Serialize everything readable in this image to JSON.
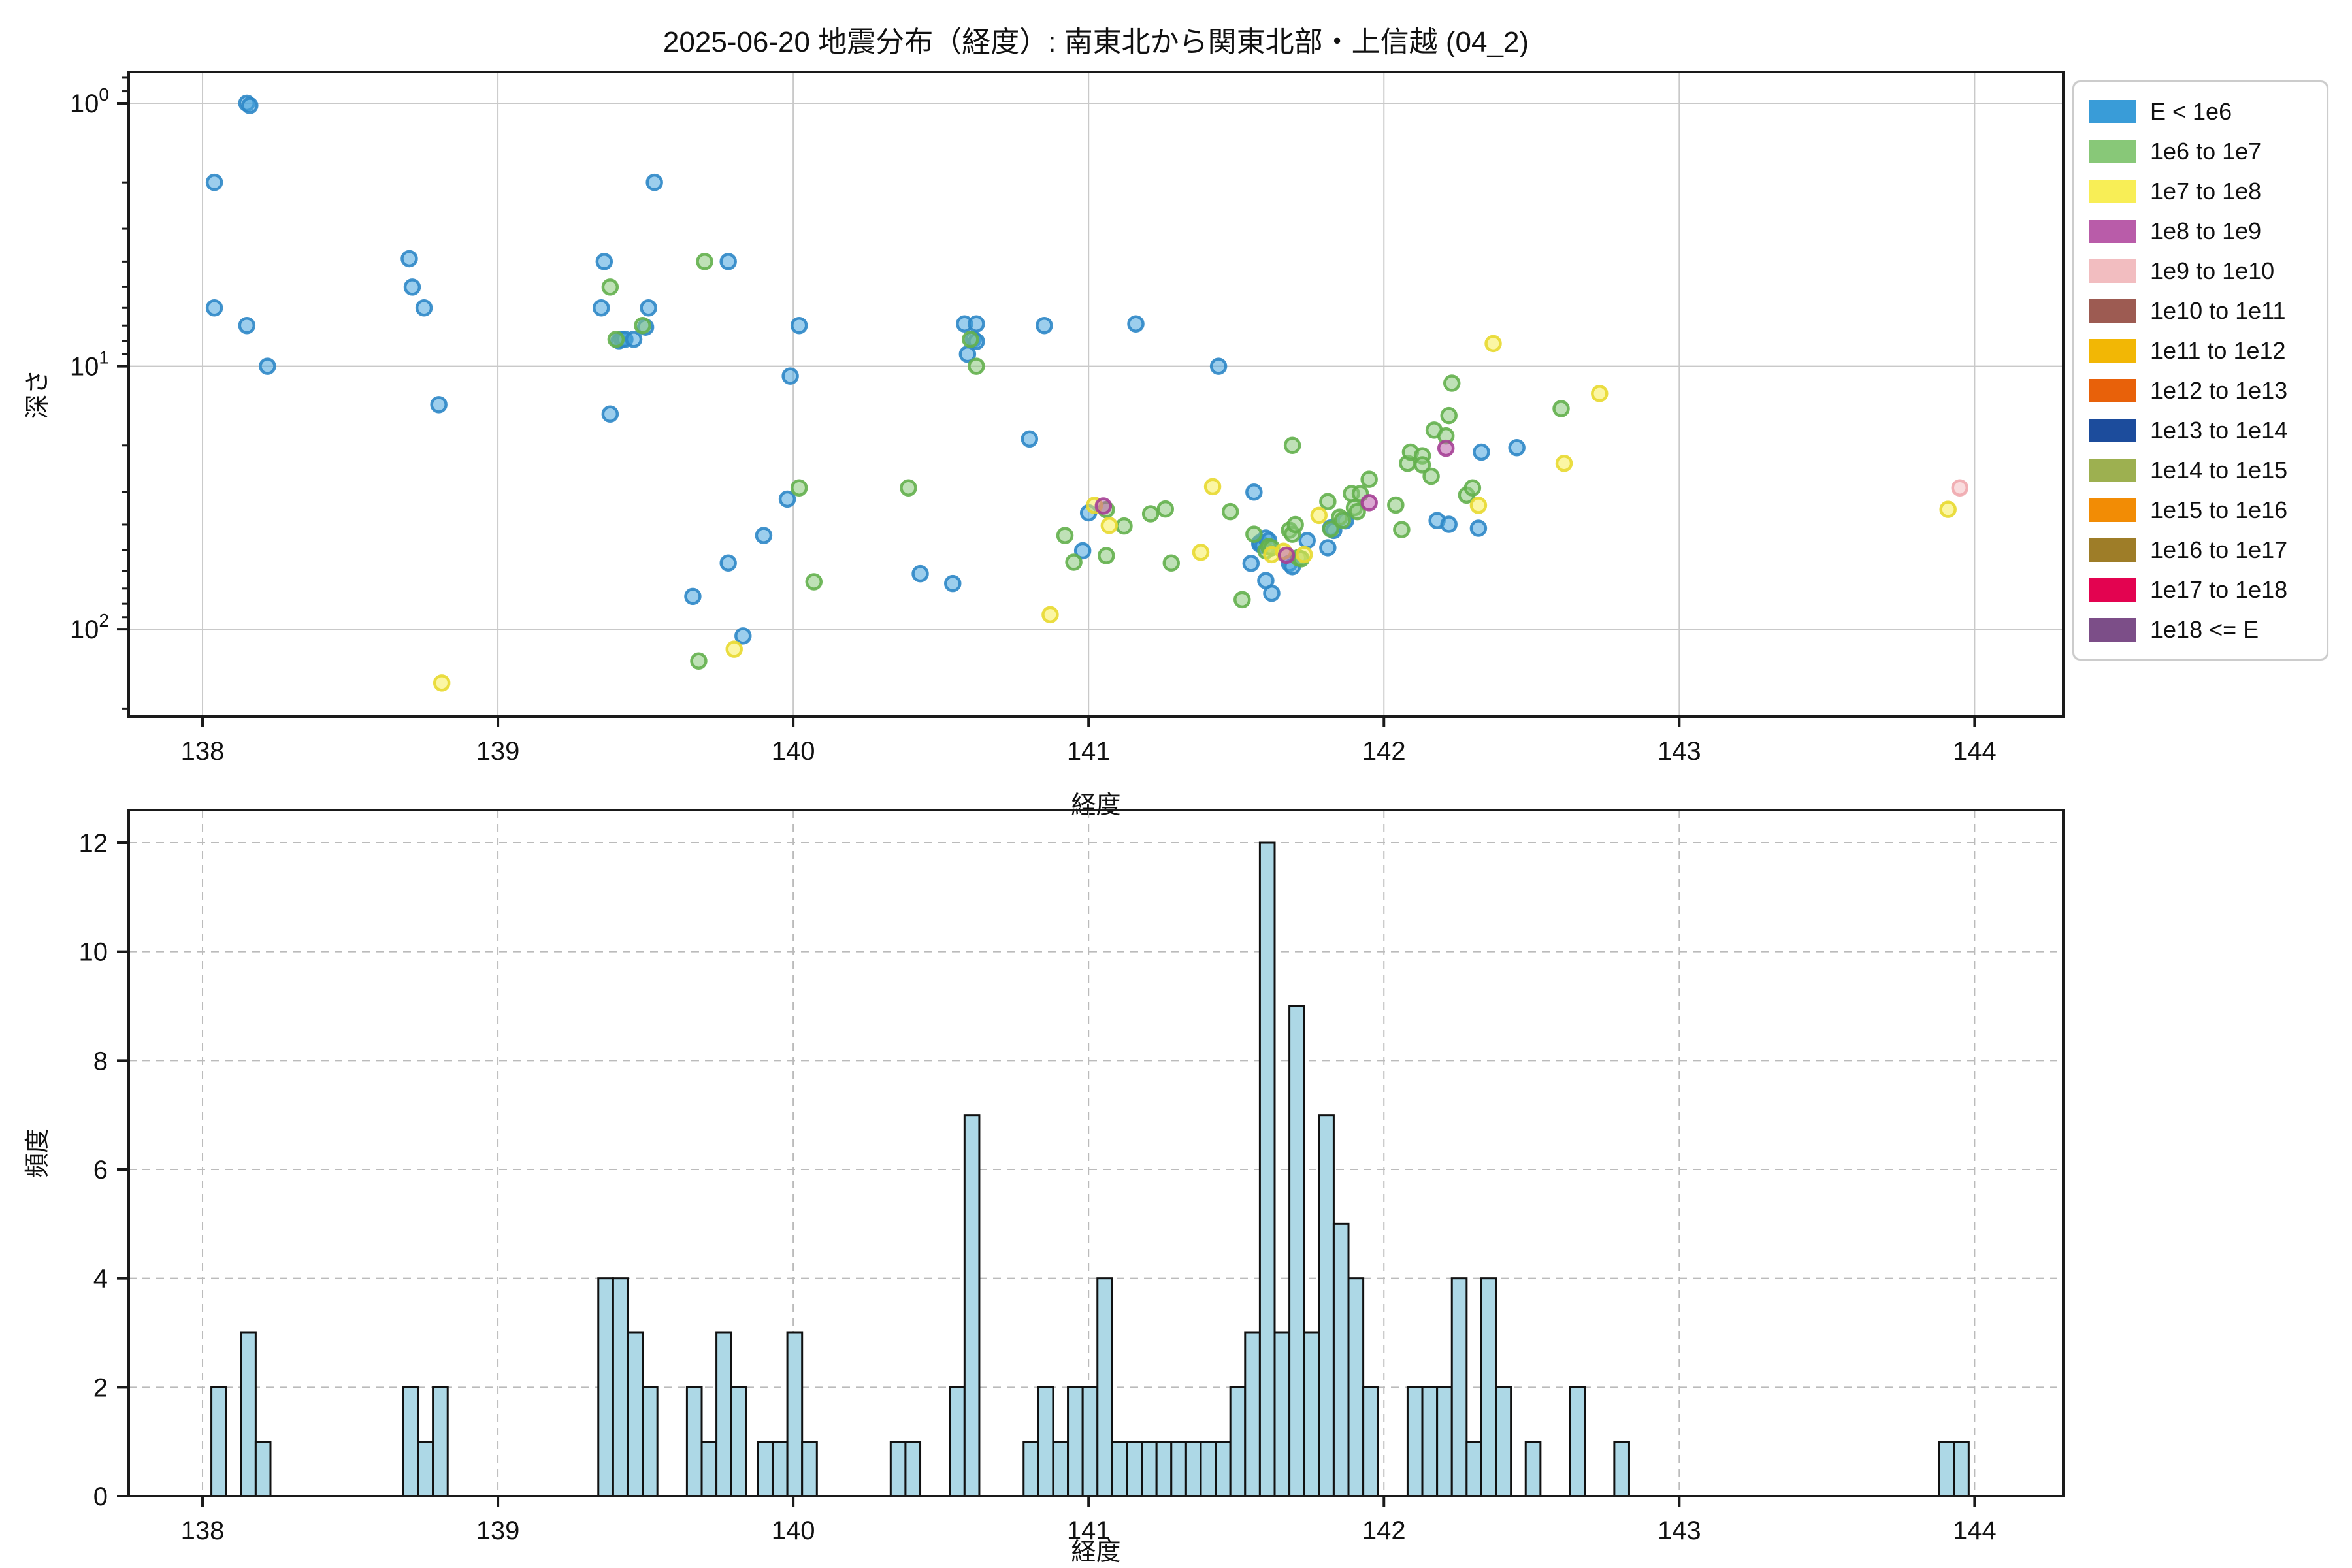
{
  "figure": {
    "title": "2025-06-20 地震分布（経度）: 南東北から関東北部・上信越 (04_2)",
    "background": "#ffffff"
  },
  "legend": {
    "position": "outside upper right",
    "border_color": "#cccccc"
  },
  "histogram_style": {
    "bar_fill": "#ADD8E6",
    "bar_edge": "#111111",
    "grid_color": "#bbbbbb",
    "grid_dashed": true
  },
  "scatter_style": {
    "grid_color": "#c9c9c9",
    "spine_color": "#1a1a1a",
    "dot_radius": 11,
    "dot_fill_opacity": 0.55,
    "dot_stroke_opacity": 0.9
  },
  "chart_data": [
    {
      "type": "scatter",
      "title": "2025-06-20 地震分布（経度）: 南東北から関東北部・上信越 (04_2)",
      "xlabel": "経度",
      "ylabel": "深さ",
      "xlim": [
        137.75,
        144.3
      ],
      "ylim": [
        0.76,
        215
      ],
      "yscale": "log",
      "y_inverted": true,
      "grid": true,
      "x_ticks": [
        138,
        139,
        140,
        141,
        142,
        143,
        144
      ],
      "y_ticks": [
        1,
        10,
        100
      ],
      "legend_position": "upper right outside",
      "series": [
        {
          "name": "E < 1e6",
          "color": "#399CD8",
          "fill": "#4AA5DE",
          "stroke": "#2D87C6",
          "points": [
            [
              138.04,
              2.0
            ],
            [
              138.04,
              6.0
            ],
            [
              138.15,
              1.0
            ],
            [
              138.16,
              1.02
            ],
            [
              138.15,
              7.0
            ],
            [
              138.22,
              10.0
            ],
            [
              138.7,
              3.9
            ],
            [
              138.71,
              5.0
            ],
            [
              138.75,
              6.0
            ],
            [
              138.8,
              14.0
            ],
            [
              139.36,
              4.0
            ],
            [
              139.35,
              6.0
            ],
            [
              139.51,
              6.0
            ],
            [
              139.53,
              2.0
            ],
            [
              139.41,
              8.0
            ],
            [
              139.42,
              7.9
            ],
            [
              139.43,
              7.9
            ],
            [
              139.46,
              7.9
            ],
            [
              139.5,
              7.1
            ],
            [
              139.38,
              15.2
            ],
            [
              139.78,
              4.0
            ],
            [
              139.66,
              75
            ],
            [
              139.78,
              56
            ],
            [
              139.83,
              106
            ],
            [
              139.9,
              44
            ],
            [
              139.98,
              32
            ],
            [
              140.02,
              7.0
            ],
            [
              139.99,
              10.9
            ],
            [
              140.43,
              61.5
            ],
            [
              140.54,
              67
            ],
            [
              140.58,
              6.9
            ],
            [
              140.62,
              6.9
            ],
            [
              140.61,
              7.9
            ],
            [
              140.62,
              8.05
            ],
            [
              140.59,
              9.0
            ],
            [
              140.85,
              7.0
            ],
            [
              140.8,
              18.9
            ],
            [
              140.98,
              50.3
            ],
            [
              141.0,
              36.1
            ],
            [
              141.16,
              6.9
            ],
            [
              141.44,
              10.0
            ],
            [
              141.56,
              30.1
            ],
            [
              141.55,
              56.2
            ],
            [
              141.58,
              46.9
            ],
            [
              141.58,
              47.5
            ],
            [
              141.59,
              48
            ],
            [
              141.6,
              45
            ],
            [
              141.61,
              46
            ],
            [
              141.6,
              65.3
            ],
            [
              141.62,
              73
            ],
            [
              141.68,
              56.2
            ],
            [
              141.69,
              57.8
            ],
            [
              141.74,
              46
            ],
            [
              141.81,
              49
            ],
            [
              141.82,
              41.2
            ],
            [
              141.83,
              42.1
            ],
            [
              141.87,
              38.7
            ],
            [
              142.18,
              38.6
            ],
            [
              142.22,
              39.9
            ],
            [
              142.33,
              21.2
            ],
            [
              142.45,
              20.4
            ],
            [
              142.32,
              41.3
            ]
          ]
        },
        {
          "name": "1e6 to 1e7",
          "color": "#88C878",
          "fill": "#8BC97B",
          "stroke": "#63B04C",
          "points": [
            [
              139.38,
              5.0
            ],
            [
              139.4,
              7.9
            ],
            [
              139.49,
              7.0
            ],
            [
              139.7,
              4.0
            ],
            [
              139.68,
              132
            ],
            [
              140.02,
              29
            ],
            [
              140.07,
              66
            ],
            [
              140.39,
              29
            ],
            [
              140.6,
              7.9
            ],
            [
              140.62,
              10.0
            ],
            [
              140.92,
              44
            ],
            [
              140.95,
              55.6
            ],
            [
              141.06,
              35.1
            ],
            [
              141.12,
              40.5
            ],
            [
              141.06,
              52.5
            ],
            [
              141.21,
              36.4
            ],
            [
              141.26,
              34.9
            ],
            [
              141.28,
              56
            ],
            [
              141.48,
              35.7
            ],
            [
              141.52,
              77.2
            ],
            [
              141.56,
              43.5
            ],
            [
              141.6,
              50.3
            ],
            [
              141.61,
              48.5
            ],
            [
              141.62,
              49
            ],
            [
              141.68,
              42
            ],
            [
              141.69,
              43.5
            ],
            [
              141.7,
              40
            ],
            [
              141.69,
              20
            ],
            [
              141.71,
              53.5
            ],
            [
              141.72,
              54
            ],
            [
              141.81,
              32.7
            ],
            [
              141.82,
              41.6
            ],
            [
              141.85,
              37.5
            ],
            [
              141.86,
              38.5
            ],
            [
              141.89,
              30.5
            ],
            [
              141.92,
              30.5
            ],
            [
              141.9,
              34.5
            ],
            [
              141.91,
              35.7
            ],
            [
              141.95,
              26.9
            ],
            [
              142.04,
              33.7
            ],
            [
              142.06,
              41.8
            ],
            [
              142.08,
              23.4
            ],
            [
              142.09,
              21.2
            ],
            [
              142.13,
              21.9
            ],
            [
              142.13,
              23.7
            ],
            [
              142.16,
              26.2
            ],
            [
              142.17,
              17.5
            ],
            [
              142.21,
              18.4
            ],
            [
              142.22,
              15.4
            ],
            [
              142.23,
              11.6
            ],
            [
              142.28,
              30.9
            ],
            [
              142.3,
              29.0
            ],
            [
              142.6,
              14.5
            ]
          ]
        },
        {
          "name": "1e7 to 1e8",
          "color": "#F8EE56",
          "fill": "#F8EF5A",
          "stroke": "#E8D930",
          "points": [
            [
              138.81,
              160
            ],
            [
              139.8,
              119
            ],
            [
              140.87,
              88
            ],
            [
              141.02,
              33.8
            ],
            [
              141.07,
              40.3
            ],
            [
              141.38,
              51
            ],
            [
              141.42,
              28.7
            ],
            [
              141.62,
              52
            ],
            [
              141.66,
              50.5
            ],
            [
              141.73,
              52
            ],
            [
              141.78,
              36.9
            ],
            [
              142.32,
              33.8
            ],
            [
              142.37,
              8.2
            ],
            [
              142.61,
              23.4
            ],
            [
              142.73,
              12.7
            ],
            [
              143.91,
              35
            ]
          ]
        },
        {
          "name": "1e8 to 1e9",
          "color": "#B95CA9",
          "fill": "#BC60AB",
          "stroke": "#A53F95",
          "points": [
            [
              141.05,
              34.0
            ],
            [
              141.67,
              52.3
            ],
            [
              141.95,
              33.0
            ],
            [
              142.21,
              20.5
            ]
          ]
        },
        {
          "name": "1e9 to 1e10",
          "color": "#F2BDC0",
          "fill": "#F4BFC3",
          "stroke": "#EFA9AE",
          "points": [
            [
              143.95,
              29
            ]
          ]
        },
        {
          "name": "1e10 to 1e11",
          "color": "#9D5B52",
          "fill": "#9D5B52",
          "stroke": "#82463E",
          "points": []
        },
        {
          "name": "1e11 to 1e12",
          "color": "#F2B705",
          "fill": "#F2B705",
          "stroke": "#C99603",
          "points": []
        },
        {
          "name": "1e12 to 1e13",
          "color": "#E8610A",
          "fill": "#E8610A",
          "stroke": "#BC4E07",
          "points": []
        },
        {
          "name": "1e13 to 1e14",
          "color": "#1C4C9C",
          "fill": "#1C4C9C",
          "stroke": "#143A78",
          "points": []
        },
        {
          "name": "1e14 to 1e15",
          "color": "#9DB050",
          "fill": "#9DB050",
          "stroke": "#7E8F3C",
          "points": []
        },
        {
          "name": "1e15 to 1e16",
          "color": "#F28C05",
          "fill": "#F28C05",
          "stroke": "#C67203",
          "points": []
        },
        {
          "name": "1e16 to 1e17",
          "color": "#9E7D28",
          "fill": "#9E7D28",
          "stroke": "#7D621E",
          "points": []
        },
        {
          "name": "1e17 to 1e18",
          "color": "#E30350",
          "fill": "#E30350",
          "stroke": "#B3023F",
          "points": []
        },
        {
          "name": "1e18 <= E",
          "color": "#7C4E88",
          "fill": "#7C4E88",
          "stroke": "#623C6C",
          "points": []
        }
      ]
    },
    {
      "type": "bar",
      "title": "",
      "xlabel": "経度",
      "ylabel": "頻度",
      "xlim": [
        137.75,
        144.3
      ],
      "ylim": [
        0,
        12.6
      ],
      "grid": true,
      "x_ticks": [
        138,
        139,
        140,
        141,
        142,
        143,
        144
      ],
      "y_ticks": [
        0,
        2,
        4,
        6,
        8,
        10,
        12
      ],
      "bin_width": 0.05,
      "bars": [
        [
          138.03,
          2
        ],
        [
          138.13,
          3
        ],
        [
          138.18,
          1
        ],
        [
          138.68,
          2
        ],
        [
          138.73,
          1
        ],
        [
          138.78,
          2
        ],
        [
          139.34,
          4
        ],
        [
          139.39,
          4
        ],
        [
          139.44,
          3
        ],
        [
          139.49,
          2
        ],
        [
          139.64,
          2
        ],
        [
          139.69,
          1
        ],
        [
          139.74,
          3
        ],
        [
          139.79,
          2
        ],
        [
          139.88,
          1
        ],
        [
          139.93,
          1
        ],
        [
          139.98,
          3
        ],
        [
          140.03,
          1
        ],
        [
          140.33,
          1
        ],
        [
          140.38,
          1
        ],
        [
          140.53,
          2
        ],
        [
          140.58,
          7
        ],
        [
          140.78,
          1
        ],
        [
          140.83,
          2
        ],
        [
          140.88,
          1
        ],
        [
          140.93,
          2
        ],
        [
          140.98,
          2
        ],
        [
          141.03,
          4
        ],
        [
          141.08,
          1
        ],
        [
          141.13,
          1
        ],
        [
          141.18,
          1
        ],
        [
          141.23,
          1
        ],
        [
          141.28,
          1
        ],
        [
          141.33,
          1
        ],
        [
          141.38,
          1
        ],
        [
          141.43,
          1
        ],
        [
          141.48,
          2
        ],
        [
          141.53,
          3
        ],
        [
          141.58,
          12
        ],
        [
          141.63,
          3
        ],
        [
          141.68,
          9
        ],
        [
          141.73,
          3
        ],
        [
          141.78,
          7
        ],
        [
          141.83,
          5
        ],
        [
          141.88,
          4
        ],
        [
          141.93,
          2
        ],
        [
          142.08,
          2
        ],
        [
          142.13,
          2
        ],
        [
          142.18,
          2
        ],
        [
          142.23,
          4
        ],
        [
          142.28,
          1
        ],
        [
          142.33,
          4
        ],
        [
          142.38,
          2
        ],
        [
          142.48,
          1
        ],
        [
          142.63,
          2
        ],
        [
          142.78,
          1
        ],
        [
          143.88,
          1
        ],
        [
          143.93,
          1
        ]
      ]
    }
  ]
}
